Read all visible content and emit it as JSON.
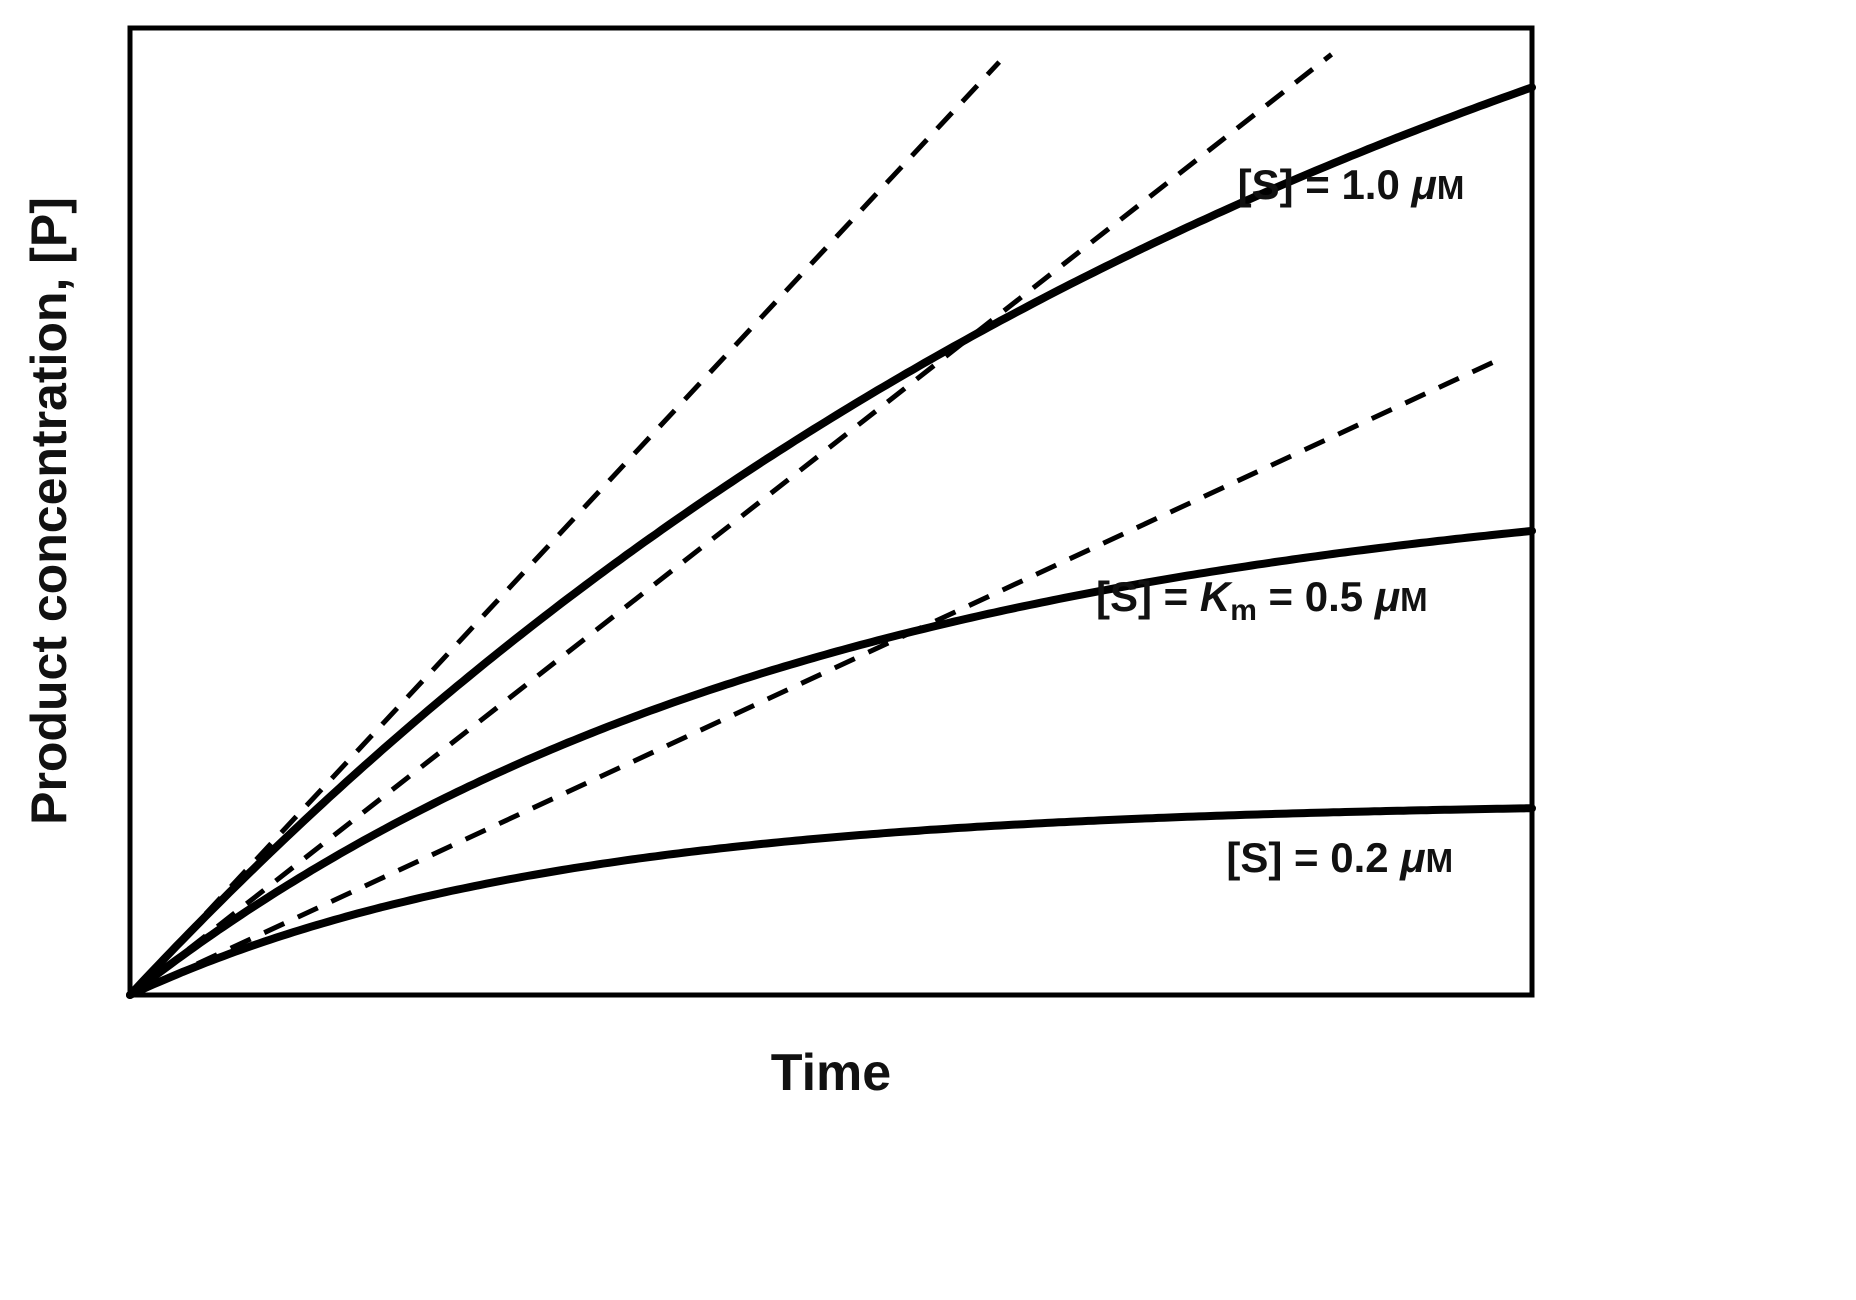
{
  "chart_data": {
    "type": "line",
    "title": "",
    "xlabel": "Time",
    "ylabel": "Product concentration, [P]",
    "x_range": [
      0,
      1
    ],
    "y_range": [
      0,
      1
    ],
    "grid": false,
    "ticks": false,
    "legend_position": "none (curves labeled directly on plot)",
    "line_color": "#000000",
    "background_color": "#ffffff",
    "description": "Product concentration versus time progress curves for three substrate concentrations; dashed lines are initial-rate tangents through the origin.",
    "series": [
      {
        "id": "s1",
        "label": "[S] = 1.0 uM",
        "model": "P(t) = pmax * (1 - exp(-k*t))",
        "pmax": 1.4,
        "k": 1.11,
        "initial_slope": 1.556,
        "y_at_right_edge": 0.94,
        "line_style": "solid"
      },
      {
        "id": "s2",
        "label": "[S] = Km = 0.5 uM",
        "model": "P(t) = pmax * (1 - exp(-k*t))",
        "pmax": 0.55,
        "k": 2.06,
        "initial_slope": 1.135,
        "y_at_right_edge": 0.48,
        "line_style": "solid"
      },
      {
        "id": "s3",
        "label": "[S] = 0.2 uM",
        "model": "P(t) = pmax * (1 - exp(-k*t))",
        "pmax": 0.2,
        "k": 3.37,
        "initial_slope": 0.673,
        "y_at_right_edge": 0.19,
        "line_style": "solid"
      }
    ],
    "tangents": [
      {
        "id": "t1",
        "for": "[S] = 1.0 uM",
        "slope": 1.556,
        "x_end": 0.62,
        "line_style": "dashed"
      },
      {
        "id": "t2",
        "for": "[S] = Km = 0.5 uM",
        "slope": 1.135,
        "x_end": 0.857,
        "line_style": "dashed"
      },
      {
        "id": "t3",
        "for": "[S] = 0.2 uM",
        "slope": 0.673,
        "x_end": 0.979,
        "line_style": "dashed"
      }
    ],
    "labels": [
      {
        "id": "s1",
        "x": 0.79,
        "y": 0.823,
        "parts": [
          {
            "t": "[S] = 1.0 "
          },
          {
            "t": "μ",
            "i": true
          },
          {
            "t": "M",
            "sc": true
          }
        ]
      },
      {
        "id": "s2",
        "x": 0.689,
        "y": 0.397,
        "parts": [
          {
            "t": "[S] = "
          },
          {
            "t": "K",
            "i": true
          },
          {
            "t": "m",
            "sub": true
          },
          {
            "t": " = 0.5 "
          },
          {
            "t": "μ",
            "i": true
          },
          {
            "t": "M",
            "sc": true
          }
        ]
      },
      {
        "id": "s3",
        "x": 0.782,
        "y": 0.127,
        "parts": [
          {
            "t": "[S] = 0.2 "
          },
          {
            "t": "μ",
            "i": true
          },
          {
            "t": "M",
            "sc": true
          }
        ]
      }
    ]
  }
}
